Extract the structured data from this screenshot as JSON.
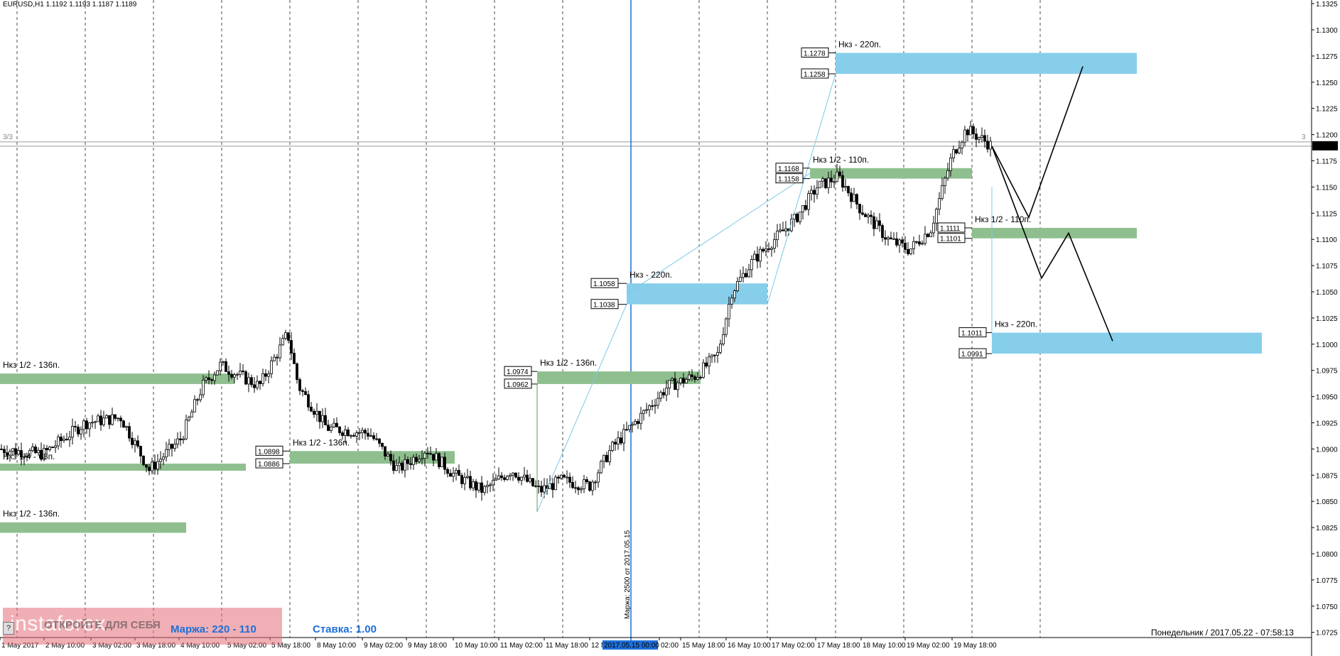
{
  "header": {
    "symbol": "EURUSD,H1  1.1192 1.1193 1.1187 1.1189"
  },
  "price_axis": {
    "ticks": [
      "1.1325",
      "1.1300",
      "1.1275",
      "1.1250",
      "1.1225",
      "1.1200",
      "1.1175",
      "1.1150",
      "1.1125",
      "1.1100",
      "1.1075",
      "1.1050",
      "1.1025",
      "1.1000",
      "1.0975",
      "1.0950",
      "1.0925",
      "1.0900",
      "1.0875",
      "1.0850",
      "1.0825",
      "1.0800",
      "1.0775",
      "1.0750",
      "1.0725"
    ],
    "current_price": "1.1189"
  },
  "time_axis": {
    "labels": [
      "1 May 2017",
      "2 May 10:00",
      "3 May 02:00",
      "3 May 18:00",
      "4 May 10:00",
      "5 May 02:00",
      "5 May 18:00",
      "8 May 10:00",
      "9 May 02:00",
      "9 May 18:00",
      "10 May 10:00",
      "11 May 02:00",
      "11 May 18:00",
      "12 M",
      "02:00",
      "15 May 18:00",
      "16 May 10:00",
      "17 May 02:00",
      "17 May 18:00",
      "18 May 10:00",
      "19 May 02:00",
      "19 May 18:00"
    ],
    "highlight_label": "2017.05.15 00:00"
  },
  "vertical_marker": {
    "label": "Маржа: 2500  от  2017.05.15"
  },
  "level_markers": {
    "left": "3/3",
    "right": "3"
  },
  "zones": [
    {
      "label": "Нкз 1/2 - 136п.",
      "color": "#8fbf8f"
    },
    {
      "label": "Нкз 1/4 - 68п.",
      "color": "#8fbf8f"
    },
    {
      "label": "Нкз 1/2 - 136п.",
      "color": "#8fbf8f"
    },
    {
      "label": "Нкз 1/2 - 136п.",
      "color": "#8fbf8f",
      "top": "1.0898",
      "bottom": "1.0886"
    },
    {
      "label": "Нкз 1/2 - 136п.",
      "color": "#8fbf8f",
      "top": "1.0974",
      "bottom": "1.0962"
    },
    {
      "label": "Нкз - 220п.",
      "color": "#87ceeb",
      "top": "1.1058",
      "bottom": "1.1038"
    },
    {
      "label": "Нкз 1/2 - 110п.",
      "color": "#8fbf8f",
      "top": "1.1168",
      "bottom": "1.1158"
    },
    {
      "label": "Нкз - 220п.",
      "color": "#87ceeb",
      "top": "1.1278",
      "bottom": "1.1258"
    },
    {
      "label": "Нкз 1/2 - 110п.",
      "color": "#8fbf8f",
      "top": "1.1111",
      "bottom": "1.1101"
    },
    {
      "label": "Нкз - 220п.",
      "color": "#87ceeb",
      "top": "1.1011",
      "bottom": "1.0991"
    }
  ],
  "watermark": {
    "text": "instaforex",
    "sub": "ОТКРОЙТЕ ДЛЯ СЕБЯ"
  },
  "info": {
    "margin": "Маржа: 220 - 110",
    "stake": "Ставка: 1.00",
    "datetime": "Понедельник  /  2017.05.22  -  07:58:13"
  },
  "help_button": "?"
}
